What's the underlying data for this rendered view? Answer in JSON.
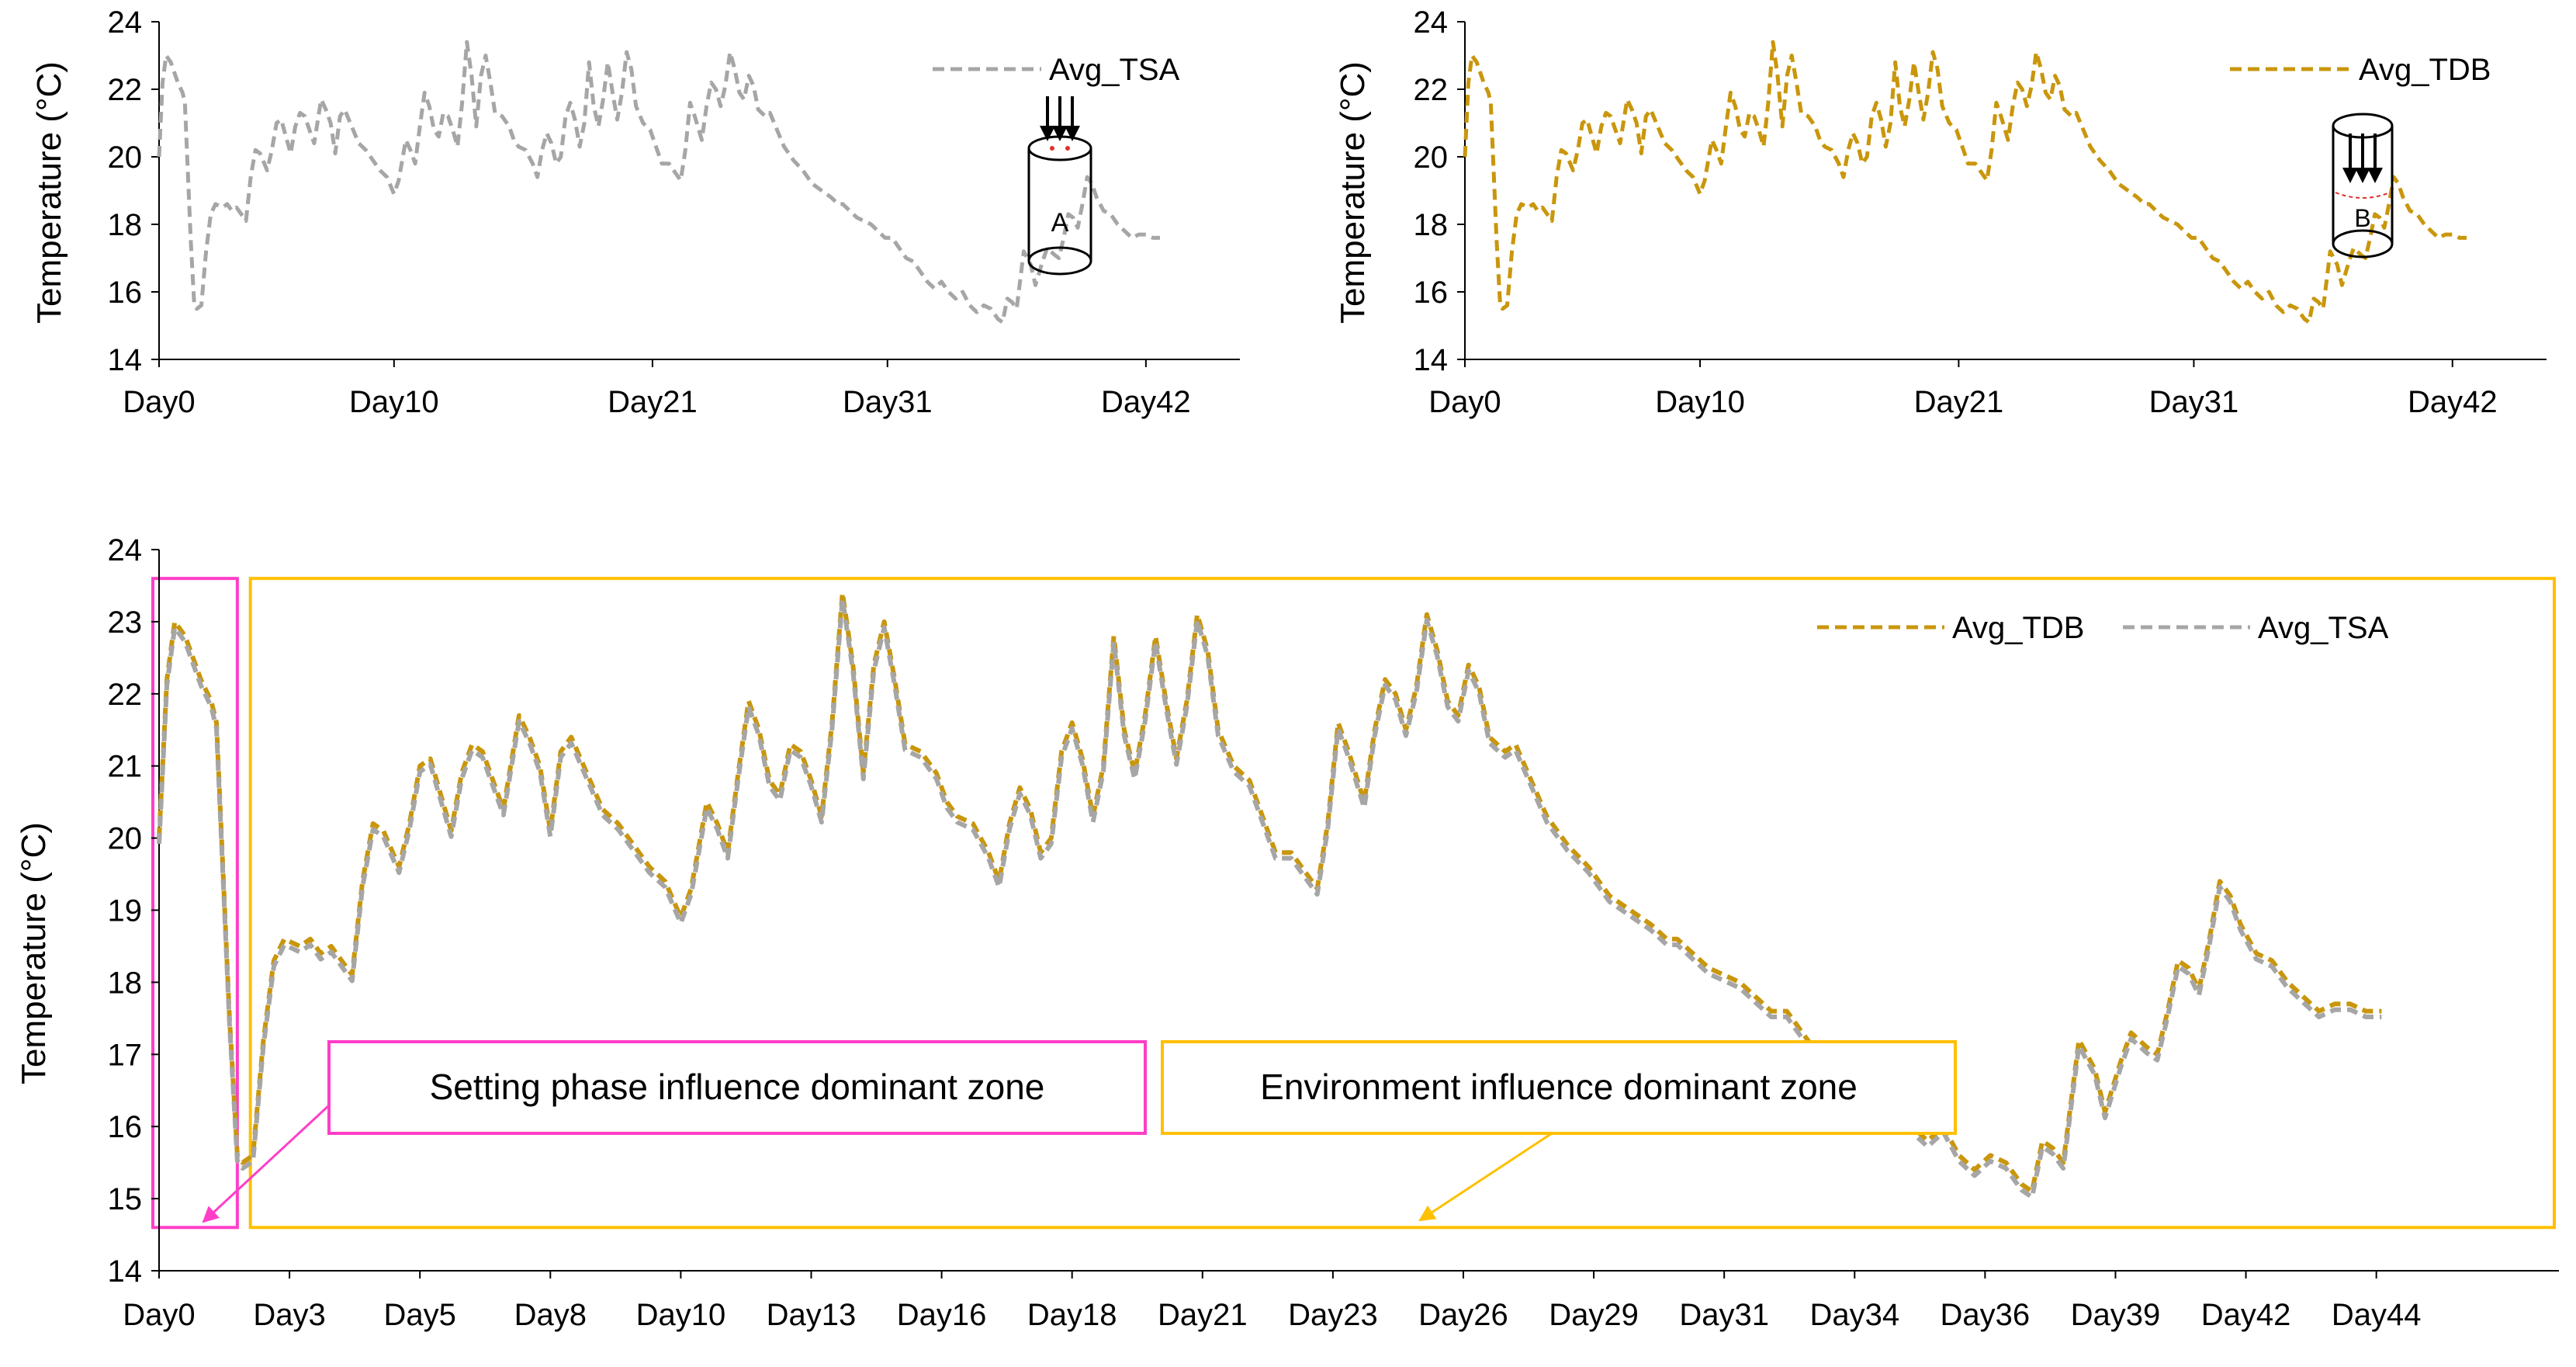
{
  "colors": {
    "tsa": "#a6a6a6",
    "tdb": "#c9960c",
    "setting_zone": "#ff3ec8",
    "environment_zone": "#ffc000",
    "axis": "#000000"
  },
  "chart_data": [
    {
      "id": "top-left",
      "type": "line",
      "ylabel": "Temperature (°C)",
      "xlabel": "",
      "ylim": [
        14,
        24
      ],
      "yticks": [
        14,
        16,
        18,
        20,
        22,
        24
      ],
      "xlim": [
        0,
        46
      ],
      "xticks": [
        {
          "day": 0,
          "label": "Day0"
        },
        {
          "day": 10,
          "label": "Day10"
        },
        {
          "day": 21,
          "label": "Day21"
        },
        {
          "day": 31,
          "label": "Day31"
        },
        {
          "day": 42,
          "label": "Day42"
        }
      ],
      "legend": {
        "position": "top-right",
        "entries": [
          "Avg_TSA"
        ]
      },
      "inset_icon": {
        "label": "A",
        "icon": "cylinder-arrows-top"
      },
      "series": [
        {
          "name": "Avg_TSA",
          "color_key": "tsa",
          "style": "dashed"
        }
      ]
    },
    {
      "id": "top-right",
      "type": "line",
      "ylabel": "Temperature (°C)",
      "xlabel": "",
      "ylim": [
        14,
        24
      ],
      "yticks": [
        14,
        16,
        18,
        20,
        22,
        24
      ],
      "xlim": [
        0,
        46
      ],
      "xticks": [
        {
          "day": 0,
          "label": "Day0"
        },
        {
          "day": 10,
          "label": "Day10"
        },
        {
          "day": 21,
          "label": "Day21"
        },
        {
          "day": 31,
          "label": "Day31"
        },
        {
          "day": 42,
          "label": "Day42"
        }
      ],
      "legend": {
        "position": "top-right",
        "entries": [
          "Avg_TDB"
        ]
      },
      "inset_icon": {
        "label": "B",
        "icon": "cylinder-arrows-inside"
      },
      "series": [
        {
          "name": "Avg_TDB",
          "color_key": "tdb",
          "style": "dashed"
        }
      ]
    },
    {
      "id": "bottom",
      "type": "line",
      "ylabel": "Temperature (°C)",
      "xlabel": "",
      "ylim": [
        14,
        24
      ],
      "yticks": [
        14,
        15,
        16,
        17,
        18,
        19,
        20,
        21,
        22,
        23,
        24
      ],
      "xlim": [
        0,
        46
      ],
      "xticks": [
        {
          "day": 0,
          "label": "Day0"
        },
        {
          "day": 2.5,
          "label": "Day3"
        },
        {
          "day": 5,
          "label": "Day5"
        },
        {
          "day": 7.5,
          "label": "Day8"
        },
        {
          "day": 10,
          "label": "Day10"
        },
        {
          "day": 12.5,
          "label": "Day13"
        },
        {
          "day": 15,
          "label": "Day16"
        },
        {
          "day": 17.5,
          "label": "Day18"
        },
        {
          "day": 20,
          "label": "Day21"
        },
        {
          "day": 22.5,
          "label": "Day23"
        },
        {
          "day": 25,
          "label": "Day26"
        },
        {
          "day": 27.5,
          "label": "Day29"
        },
        {
          "day": 30,
          "label": "Day31"
        },
        {
          "day": 32.5,
          "label": "Day34"
        },
        {
          "day": 35,
          "label": "Day36"
        },
        {
          "day": 37.5,
          "label": "Day39"
        },
        {
          "day": 40,
          "label": "Day42"
        },
        {
          "day": 42.5,
          "label": "Day44"
        }
      ],
      "legend": {
        "position": "top-right",
        "entries": [
          "Avg_TDB",
          "Avg_TSA"
        ]
      },
      "series": [
        {
          "name": "Avg_TDB",
          "color_key": "tdb",
          "style": "dashed"
        },
        {
          "name": "Avg_TSA",
          "color_key": "tsa",
          "style": "dashed"
        }
      ],
      "zones": [
        {
          "name": "Setting phase influence dominant zone",
          "color_key": "setting_zone",
          "x_range": [
            0,
            1.5
          ],
          "y_range": [
            14.6,
            23.6
          ]
        },
        {
          "name": "Environment influence dominant zone",
          "color_key": "environment_zone",
          "x_range": [
            1.75,
            46
          ],
          "y_range": [
            14.6,
            23.6
          ]
        }
      ],
      "annotations": [
        {
          "text": "Setting phase influence dominant zone",
          "color_key": "setting_zone",
          "arrow_to": {
            "day": 0.65,
            "temp": 14.7
          }
        },
        {
          "text": "Environment influence dominant zone",
          "color_key": "environment_zone",
          "arrow_to": {
            "day": 23.1,
            "temp": 14.7
          }
        }
      ]
    }
  ],
  "temperature_profile": {
    "series_name": "Avg_TDB",
    "x_units": "day",
    "points": [
      [
        0,
        20.0
      ],
      [
        0.15,
        22.2
      ],
      [
        0.3,
        23.0
      ],
      [
        0.5,
        22.8
      ],
      [
        0.8,
        22.2
      ],
      [
        1.0,
        21.9
      ],
      [
        1.1,
        21.6
      ],
      [
        1.35,
        17.5
      ],
      [
        1.5,
        15.6
      ],
      [
        1.6,
        15.5
      ],
      [
        1.8,
        15.6
      ],
      [
        2.0,
        17.2
      ],
      [
        2.2,
        18.3
      ],
      [
        2.4,
        18.6
      ],
      [
        2.7,
        18.5
      ],
      [
        2.9,
        18.6
      ],
      [
        3.1,
        18.4
      ],
      [
        3.3,
        18.5
      ],
      [
        3.5,
        18.3
      ],
      [
        3.7,
        18.1
      ],
      [
        3.9,
        19.4
      ],
      [
        4.1,
        20.2
      ],
      [
        4.3,
        20.1
      ],
      [
        4.6,
        19.6
      ],
      [
        4.8,
        20.2
      ],
      [
        5.0,
        21.0
      ],
      [
        5.2,
        21.1
      ],
      [
        5.4,
        20.6
      ],
      [
        5.6,
        20.1
      ],
      [
        5.8,
        20.9
      ],
      [
        6.0,
        21.3
      ],
      [
        6.2,
        21.2
      ],
      [
        6.4,
        20.8
      ],
      [
        6.6,
        20.4
      ],
      [
        6.9,
        21.7
      ],
      [
        7.1,
        21.4
      ],
      [
        7.3,
        21.0
      ],
      [
        7.5,
        20.1
      ],
      [
        7.7,
        21.2
      ],
      [
        7.9,
        21.4
      ],
      [
        8.2,
        20.9
      ],
      [
        8.5,
        20.4
      ],
      [
        8.8,
        20.2
      ],
      [
        9.1,
        19.9
      ],
      [
        9.4,
        19.6
      ],
      [
        9.7,
        19.4
      ],
      [
        10.0,
        18.9
      ],
      [
        10.2,
        19.3
      ],
      [
        10.5,
        20.5
      ],
      [
        10.7,
        20.2
      ],
      [
        10.9,
        19.8
      ],
      [
        11.1,
        20.9
      ],
      [
        11.3,
        21.9
      ],
      [
        11.5,
        21.5
      ],
      [
        11.7,
        20.8
      ],
      [
        11.9,
        20.6
      ],
      [
        12.1,
        21.3
      ],
      [
        12.3,
        21.2
      ],
      [
        12.5,
        20.8
      ],
      [
        12.7,
        20.3
      ],
      [
        12.9,
        21.6
      ],
      [
        13.1,
        23.4
      ],
      [
        13.3,
        22.4
      ],
      [
        13.5,
        20.9
      ],
      [
        13.7,
        22.4
      ],
      [
        13.9,
        23.0
      ],
      [
        14.1,
        22.2
      ],
      [
        14.3,
        21.3
      ],
      [
        14.6,
        21.2
      ],
      [
        14.9,
        20.9
      ],
      [
        15.1,
        20.5
      ],
      [
        15.3,
        20.3
      ],
      [
        15.6,
        20.2
      ],
      [
        15.9,
        19.8
      ],
      [
        16.1,
        19.4
      ],
      [
        16.3,
        20.2
      ],
      [
        16.5,
        20.7
      ],
      [
        16.7,
        20.4
      ],
      [
        16.9,
        19.8
      ],
      [
        17.1,
        20.0
      ],
      [
        17.3,
        21.2
      ],
      [
        17.5,
        21.6
      ],
      [
        17.7,
        21.1
      ],
      [
        17.9,
        20.3
      ],
      [
        18.1,
        21.0
      ],
      [
        18.3,
        22.8
      ],
      [
        18.5,
        21.5
      ],
      [
        18.7,
        20.9
      ],
      [
        18.9,
        21.7
      ],
      [
        19.1,
        22.8
      ],
      [
        19.3,
        21.9
      ],
      [
        19.5,
        21.1
      ],
      [
        19.7,
        21.9
      ],
      [
        19.9,
        23.1
      ],
      [
        20.1,
        22.6
      ],
      [
        20.3,
        21.5
      ],
      [
        20.6,
        21.0
      ],
      [
        20.9,
        20.8
      ],
      [
        21.2,
        20.2
      ],
      [
        21.4,
        19.8
      ],
      [
        21.7,
        19.8
      ],
      [
        21.9,
        19.6
      ],
      [
        22.2,
        19.3
      ],
      [
        22.4,
        20.2
      ],
      [
        22.6,
        21.6
      ],
      [
        22.8,
        21.2
      ],
      [
        23.1,
        20.5
      ],
      [
        23.3,
        21.5
      ],
      [
        23.5,
        22.2
      ],
      [
        23.7,
        22.0
      ],
      [
        23.9,
        21.5
      ],
      [
        24.1,
        22.1
      ],
      [
        24.3,
        23.1
      ],
      [
        24.5,
        22.6
      ],
      [
        24.7,
        21.9
      ],
      [
        24.9,
        21.7
      ],
      [
        25.1,
        22.4
      ],
      [
        25.3,
        22.1
      ],
      [
        25.5,
        21.4
      ],
      [
        25.8,
        21.2
      ],
      [
        26.0,
        21.3
      ],
      [
        26.3,
        20.8
      ],
      [
        26.6,
        20.3
      ],
      [
        27.0,
        19.9
      ],
      [
        27.4,
        19.6
      ],
      [
        27.8,
        19.2
      ],
      [
        28.2,
        19.0
      ],
      [
        28.6,
        18.8
      ],
      [
        28.9,
        18.6
      ],
      [
        29.1,
        18.6
      ],
      [
        29.4,
        18.4
      ],
      [
        29.7,
        18.2
      ],
      [
        30.0,
        18.1
      ],
      [
        30.3,
        18.0
      ],
      [
        30.6,
        17.8
      ],
      [
        30.9,
        17.6
      ],
      [
        31.2,
        17.6
      ],
      [
        31.5,
        17.3
      ],
      [
        31.8,
        17.0
      ],
      [
        32.1,
        16.9
      ],
      [
        32.4,
        16.6
      ],
      [
        32.7,
        16.3
      ],
      [
        33.0,
        16.1
      ],
      [
        33.3,
        16.3
      ],
      [
        33.6,
        16.0
      ],
      [
        33.9,
        15.8
      ],
      [
        34.2,
        16.0
      ],
      [
        34.5,
        15.6
      ],
      [
        34.8,
        15.4
      ],
      [
        35.1,
        15.6
      ],
      [
        35.4,
        15.5
      ],
      [
        35.7,
        15.2
      ],
      [
        35.9,
        15.1
      ],
      [
        36.1,
        15.8
      ],
      [
        36.3,
        15.7
      ],
      [
        36.5,
        15.5
      ],
      [
        36.8,
        17.2
      ],
      [
        37.1,
        16.8
      ],
      [
        37.3,
        16.2
      ],
      [
        37.6,
        16.9
      ],
      [
        37.8,
        17.3
      ],
      [
        38.1,
        17.1
      ],
      [
        38.3,
        17.0
      ],
      [
        38.5,
        17.6
      ],
      [
        38.7,
        18.3
      ],
      [
        38.9,
        18.2
      ],
      [
        39.1,
        17.9
      ],
      [
        39.3,
        18.6
      ],
      [
        39.5,
        19.4
      ],
      [
        39.7,
        19.2
      ],
      [
        39.9,
        18.8
      ],
      [
        40.2,
        18.4
      ],
      [
        40.5,
        18.3
      ],
      [
        40.8,
        18.0
      ],
      [
        41.1,
        17.8
      ],
      [
        41.4,
        17.6
      ],
      [
        41.7,
        17.7
      ],
      [
        42.0,
        17.7
      ],
      [
        42.3,
        17.6
      ],
      [
        42.6,
        17.6
      ]
    ]
  }
}
